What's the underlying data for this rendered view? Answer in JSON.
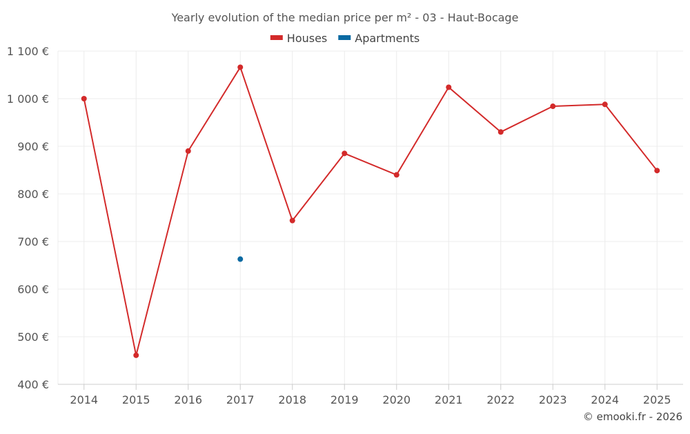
{
  "chart_data": {
    "type": "line",
    "title": "Yearly evolution of the median price per m² - 03 - Haut-Bocage",
    "xlabel": "",
    "ylabel": "",
    "categories": [
      "2014",
      "2015",
      "2016",
      "2017",
      "2018",
      "2019",
      "2020",
      "2021",
      "2022",
      "2023",
      "2024",
      "2025"
    ],
    "ylim": [
      400,
      1100
    ],
    "yticks": [
      400,
      500,
      600,
      700,
      800,
      900,
      1000,
      1100
    ],
    "ytick_labels": [
      "400 €",
      "500 €",
      "600 €",
      "700 €",
      "800 €",
      "900 €",
      "1 000 €",
      "1 100 €"
    ],
    "grid": true,
    "legend_position": "top-center",
    "series": [
      {
        "name": "Houses",
        "color": "#d32a2a",
        "values": [
          1000,
          461,
          890,
          1066,
          744,
          885,
          840,
          1024,
          930,
          984,
          988,
          849
        ]
      },
      {
        "name": "Apartments",
        "color": "#0b6aa2",
        "values": [
          null,
          null,
          null,
          663,
          null,
          null,
          null,
          null,
          null,
          null,
          null,
          null
        ]
      }
    ],
    "credit": "© emooki.fr - 2026"
  }
}
